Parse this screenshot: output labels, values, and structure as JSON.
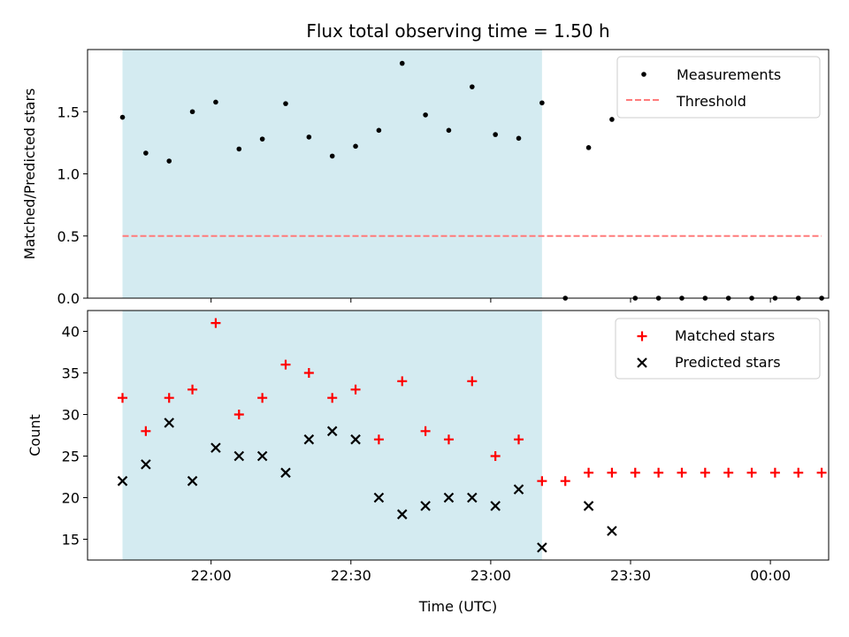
{
  "chart_data": {
    "type": "scatter",
    "title": "Flux total observing time = 1.50 h",
    "xlabel": "Time (UTC)",
    "x_tick_labels": [
      "22:00",
      "22:30",
      "23:00",
      "23:30",
      "00:00"
    ],
    "x_tick_minutes": [
      1320,
      1350,
      1380,
      1410,
      1440
    ],
    "xlim_minutes": [
      1293.5,
      1452.5
    ],
    "times": [
      "21:41",
      "21:46",
      "21:51",
      "21:56",
      "22:01",
      "22:06",
      "22:11",
      "22:16",
      "22:21",
      "22:26",
      "22:31",
      "22:36",
      "22:41",
      "22:46",
      "22:51",
      "22:56",
      "23:01",
      "23:06",
      "23:11",
      "23:16",
      "23:21",
      "23:26",
      "23:31",
      "23:36",
      "23:41",
      "23:46",
      "23:51",
      "23:56",
      "00:01",
      "00:06",
      "00:11"
    ],
    "shaded_interval": [
      "21:41",
      "23:11"
    ],
    "shade_color": "#d4ebf1",
    "top_panel": {
      "ylabel": "Matched/Predicted stars",
      "ylim": [
        0,
        2.0
      ],
      "y_ticks": [
        "0.0",
        "0.5",
        "1.0",
        "1.5"
      ],
      "threshold": 0.5,
      "threshold_color": "#ff7b7b",
      "measurements": [
        1.455,
        1.167,
        1.103,
        1.5,
        1.577,
        1.2,
        1.28,
        1.565,
        1.296,
        1.143,
        1.222,
        1.35,
        1.889,
        1.474,
        1.35,
        1.7,
        1.316,
        1.286,
        1.571,
        0,
        1.211,
        1.438,
        0,
        0,
        0,
        0,
        0,
        0,
        0,
        0,
        0
      ],
      "legend": [
        "Measurements",
        "Threshold"
      ]
    },
    "bottom_panel": {
      "ylabel": "Count",
      "ylim": [
        12.5,
        42.5
      ],
      "y_ticks": [
        "15",
        "20",
        "25",
        "30",
        "35",
        "40"
      ],
      "matched_stars": [
        32,
        28,
        32,
        33,
        41,
        30,
        32,
        36,
        35,
        32,
        33,
        27,
        34,
        28,
        27,
        34,
        25,
        27,
        22,
        22,
        23,
        23,
        23,
        23,
        23,
        23,
        23,
        23,
        23,
        23,
        23
      ],
      "predicted_stars": [
        22,
        24,
        29,
        22,
        26,
        25,
        25,
        23,
        27,
        28,
        27,
        20,
        18,
        19,
        20,
        20,
        19,
        21,
        14,
        null,
        19,
        16,
        null,
        null,
        null,
        null,
        null,
        null,
        null,
        null,
        null
      ],
      "matched_color": "#ff0000",
      "predicted_color": "#000000",
      "legend": [
        "Matched stars",
        "Predicted stars"
      ]
    }
  }
}
